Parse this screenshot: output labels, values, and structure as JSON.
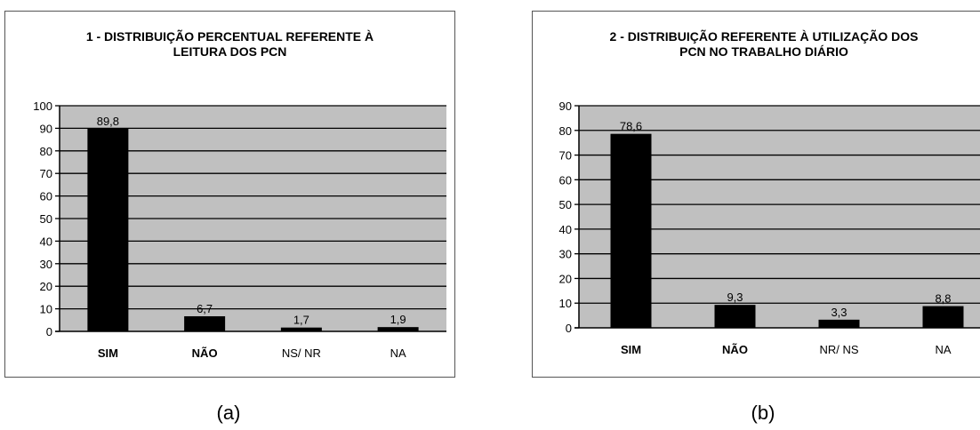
{
  "chart_data": [
    {
      "type": "bar",
      "title": [
        "1 - DISTRIBUIÇÃO PERCENTUAL REFERENTE À",
        "LEITURA DOS PCN"
      ],
      "categories": [
        "SIM",
        "NÃO",
        "NS/ NR",
        "NA"
      ],
      "values": [
        89.8,
        6.7,
        1.7,
        1.9
      ],
      "value_labels": [
        "89,8",
        "6,7",
        "1,7",
        "1,9"
      ],
      "bold_categories": [
        true,
        true,
        false,
        false
      ],
      "ylim": [
        0,
        100
      ],
      "yticks": [
        0,
        10,
        20,
        30,
        40,
        50,
        60,
        70,
        80,
        90,
        100
      ],
      "grid": true,
      "plot_bg": "#c0c0c0",
      "bar_color": "#000000"
    },
    {
      "type": "bar",
      "title": [
        "2 - DISTRIBUIÇÃO REFERENTE À UTILIZAÇÃO DOS",
        "PCN NO TRABALHO DIÁRIO"
      ],
      "categories": [
        "SIM",
        "NÃO",
        "NR/ NS",
        "NA"
      ],
      "values": [
        78.6,
        9.3,
        3.3,
        8.8
      ],
      "value_labels": [
        "78,6",
        "9,3",
        "3,3",
        "8,8"
      ],
      "bold_categories": [
        true,
        true,
        false,
        false
      ],
      "ylim": [
        0,
        90
      ],
      "yticks": [
        0,
        10,
        20,
        30,
        40,
        50,
        60,
        70,
        80,
        90
      ],
      "grid": true,
      "plot_bg": "#c0c0c0",
      "bar_color": "#000000"
    }
  ],
  "captions": {
    "a": "(a)",
    "b": "(b)"
  }
}
